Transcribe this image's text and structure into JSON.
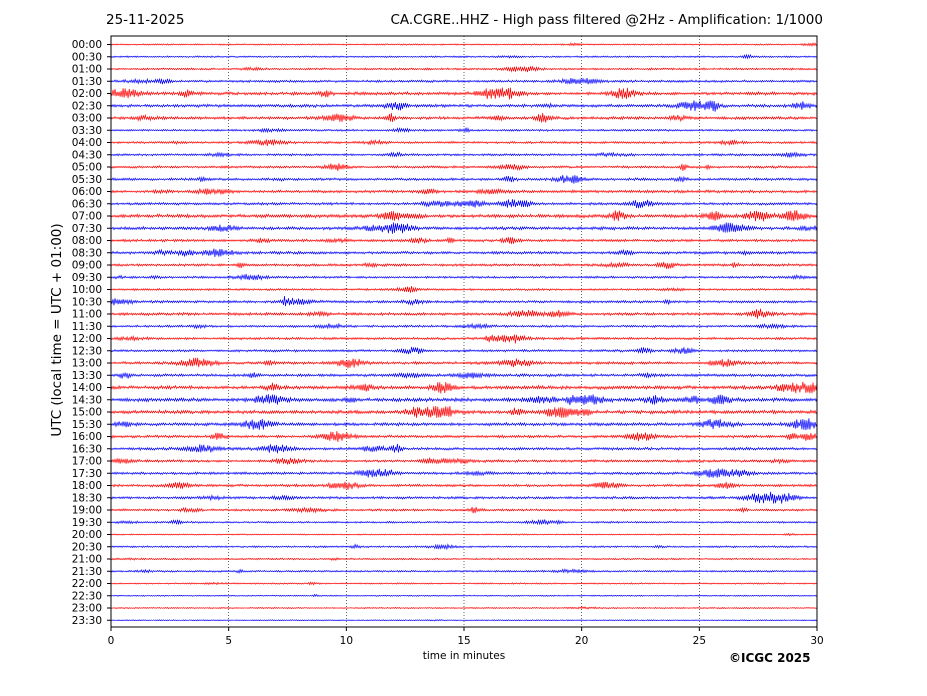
{
  "header": {
    "date": "25-11-2025",
    "title": "CA.CGRE..HHZ - High pass filtered @2Hz - Amplification: 1/1000"
  },
  "credit": "©ICGC 2025",
  "chart_data": {
    "type": "line",
    "ylabel": "UTC (local time = UTC + 01:00)",
    "xlabel": "time in minutes",
    "xlim": [
      0,
      30
    ],
    "x_ticks": [
      0,
      5,
      10,
      15,
      20,
      25,
      30
    ],
    "grid_x": true,
    "trace_colors": [
      "#ff0000",
      "#0000ff"
    ],
    "rows": [
      {
        "label": "00:00",
        "level": 0.15
      },
      {
        "label": "00:30",
        "level": 0.2
      },
      {
        "label": "01:00",
        "level": 0.3
      },
      {
        "label": "01:30",
        "level": 0.4
      },
      {
        "label": "02:00",
        "level": 0.6
      },
      {
        "label": "02:30",
        "level": 0.55
      },
      {
        "label": "03:00",
        "level": 0.55
      },
      {
        "label": "03:30",
        "level": 0.3
      },
      {
        "label": "04:00",
        "level": 0.35
      },
      {
        "label": "04:30",
        "level": 0.35
      },
      {
        "label": "05:00",
        "level": 0.4
      },
      {
        "label": "05:30",
        "level": 0.45
      },
      {
        "label": "06:00",
        "level": 0.5
      },
      {
        "label": "06:30",
        "level": 0.45
      },
      {
        "label": "07:00",
        "level": 0.7
      },
      {
        "label": "07:30",
        "level": 0.6
      },
      {
        "label": "08:00",
        "level": 0.45
      },
      {
        "label": "08:30",
        "level": 0.5
      },
      {
        "label": "09:00",
        "level": 0.45
      },
      {
        "label": "09:30",
        "level": 0.35
      },
      {
        "label": "10:00",
        "level": 0.3
      },
      {
        "label": "10:30",
        "level": 0.45
      },
      {
        "label": "11:00",
        "level": 0.5
      },
      {
        "label": "11:30",
        "level": 0.35
      },
      {
        "label": "12:00",
        "level": 0.4
      },
      {
        "label": "12:30",
        "level": 0.4
      },
      {
        "label": "13:00",
        "level": 0.5
      },
      {
        "label": "13:30",
        "level": 0.5
      },
      {
        "label": "14:00",
        "level": 0.7
      },
      {
        "label": "14:30",
        "level": 0.75
      },
      {
        "label": "15:00",
        "level": 0.7
      },
      {
        "label": "15:30",
        "level": 0.6
      },
      {
        "label": "16:00",
        "level": 0.5
      },
      {
        "label": "16:30",
        "level": 0.5
      },
      {
        "label": "17:00",
        "level": 0.45
      },
      {
        "label": "17:30",
        "level": 0.45
      },
      {
        "label": "18:00",
        "level": 0.45
      },
      {
        "label": "18:30",
        "level": 0.45
      },
      {
        "label": "19:00",
        "level": 0.35
      },
      {
        "label": "19:30",
        "level": 0.25
      },
      {
        "label": "20:00",
        "level": 0.1
      },
      {
        "label": "20:30",
        "level": 0.25
      },
      {
        "label": "21:00",
        "level": 0.2
      },
      {
        "label": "21:30",
        "level": 0.25
      },
      {
        "label": "22:00",
        "level": 0.15
      },
      {
        "label": "22:30",
        "level": 0.1
      },
      {
        "label": "23:00",
        "level": 0.1
      },
      {
        "label": "23:30",
        "level": 0.05
      }
    ]
  }
}
